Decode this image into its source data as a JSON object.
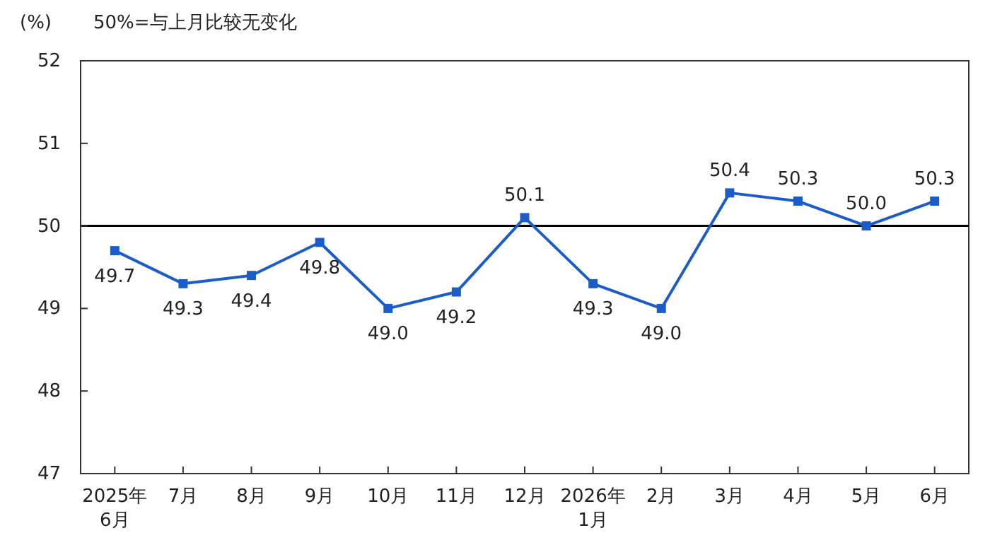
{
  "chart_data": {
    "type": "line",
    "ylabel": "(%)",
    "annotations": [
      "50%=与上月比较无变化"
    ],
    "categories": [
      "2025年\n6月",
      "7月",
      "8月",
      "9月",
      "10月",
      "11月",
      "12月",
      "2026年\n1月",
      "2月",
      "3月",
      "4月",
      "5月",
      "6月"
    ],
    "series": [
      {
        "color": "#1a5cc8",
        "values": [
          49.7,
          49.3,
          49.4,
          49.8,
          49.0,
          49.2,
          50.1,
          49.3,
          49.0,
          50.4,
          50.3,
          50.0,
          50.3
        ],
        "value_labels": [
          "49.7",
          "49.3",
          "49.4",
          "49.8",
          "49.0",
          "49.2",
          "50.1",
          "49.3",
          "49.0",
          "50.4",
          "50.3",
          "50.0",
          "50.3"
        ]
      }
    ],
    "ylim": [
      47,
      52
    ],
    "yticks": [
      47,
      48,
      49,
      50,
      51,
      52
    ],
    "grid": false,
    "marker": "square",
    "line_style": "solid",
    "ref_lines": [
      {
        "axis": "y",
        "value": 50,
        "color": "#000000"
      }
    ]
  }
}
